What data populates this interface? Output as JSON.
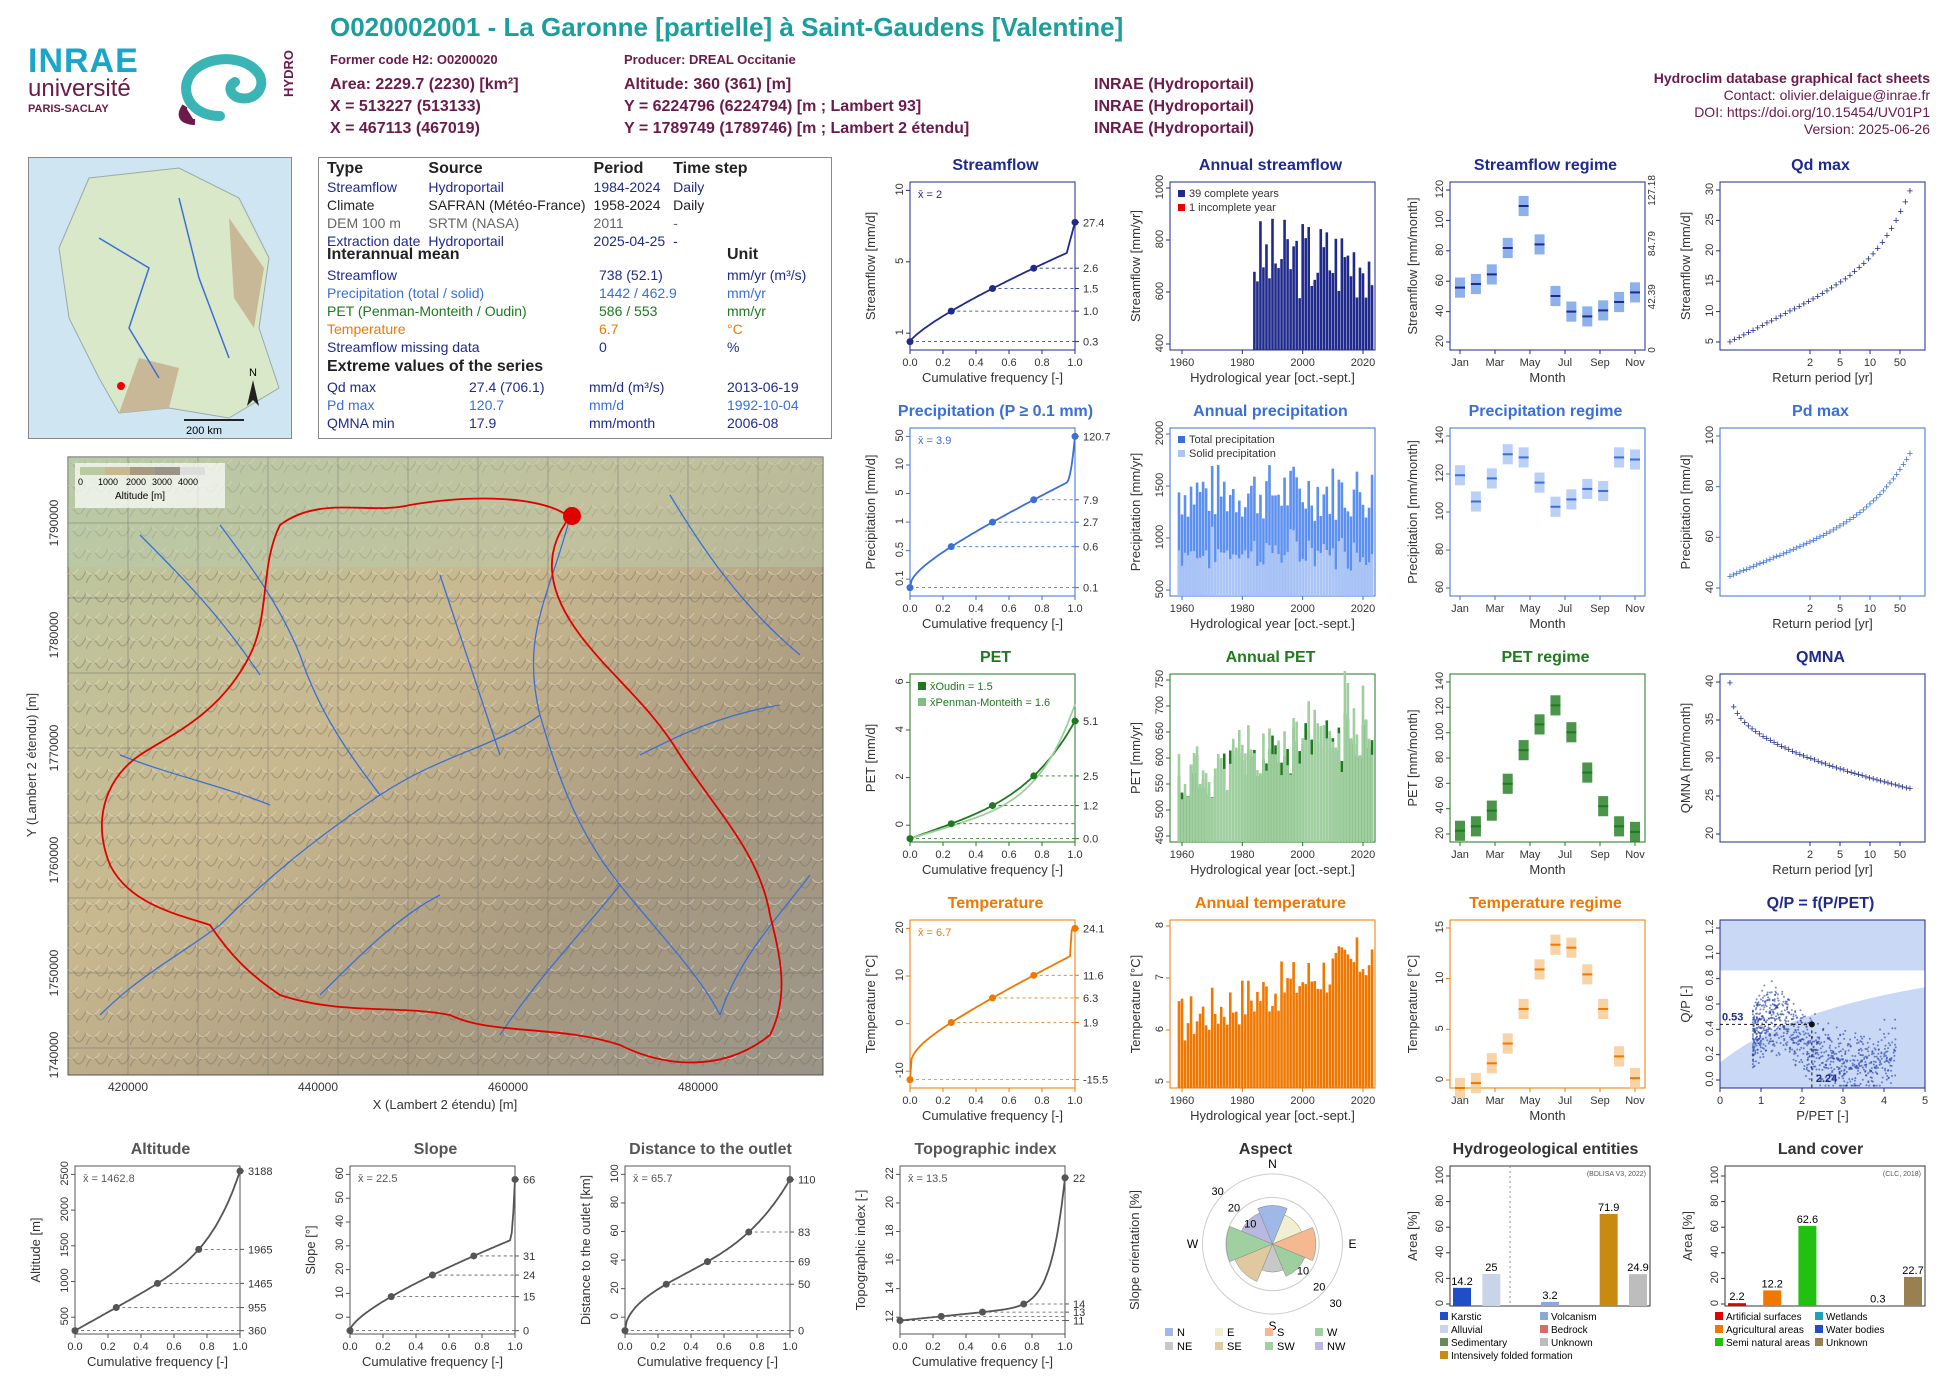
{
  "header": {
    "title": "O020002001 - La Garonne [partielle] à Saint-Gaudens [Valentine]",
    "former_code": "Former code H2: O0200020",
    "producer": "Producer: DREAL Occitanie",
    "area": "Area: 2229.7 (2230) [km²]",
    "altitude": "Altitude: 360 (361) [m]",
    "x1": "X = 513227 (513133)",
    "y1": "Y = 6224796 (6224794) [m ; Lambert 93]",
    "src1": "INRAE (Hydroportail)",
    "x2": "X = 467113 (467019)",
    "y2": "Y = 1789749 (1789746) [m ; Lambert 2 étendu]",
    "src2": "INRAE (Hydroportail)",
    "src3": "INRAE (Hydroportail)",
    "meta_title": "Hydroclim database graphical fact sheets",
    "contact": "Contact: olivier.delaigue@inrae.fr",
    "doi": "DOI: https://doi.org/10.15454/UV01P1",
    "version": "Version: 2025-06-26",
    "logo_inrae": "INRAE",
    "logo_univ": "université",
    "logo_paris": "PARIS-SACLAY",
    "logo_hydro": "HYDRO"
  },
  "colors": {
    "teal": "#1a9e9e",
    "wine": "#6b1a4a",
    "flow": "#1f2a8c",
    "precip": "#3a6fd8",
    "pet": "#1e7a1e",
    "temp": "#f07800",
    "grey": "#555555"
  },
  "info_table": {
    "headers": [
      "Type",
      "Source",
      "Period",
      "Time step"
    ],
    "rows": [
      [
        "Streamflow",
        "Hydroportail",
        "1984-2024",
        "Daily"
      ],
      [
        "Climate",
        "SAFRAN (Météo-France)",
        "1958-2024",
        "Daily"
      ],
      [
        "DEM 100 m",
        "SRTM (NASA)",
        "2011",
        "-"
      ],
      [
        "Extraction date",
        "Hydroportail",
        "2025-04-25",
        "-"
      ]
    ],
    "interannual_title": "Interannual mean",
    "unit_title": "Unit",
    "means": [
      [
        "Streamflow",
        "738 (52.1)",
        "mm/yr (m³/s)"
      ],
      [
        "Precipitation (total / solid)",
        "1442 / 462.9",
        "mm/yr"
      ],
      [
        "PET (Penman-Monteith / Oudin)",
        "586 / 553",
        "mm/yr"
      ],
      [
        "Temperature",
        "6.7",
        "°C"
      ],
      [
        "Streamflow missing data",
        "0",
        "%"
      ]
    ],
    "extreme_title": "Extreme values of the series",
    "extremes": [
      [
        "Qd max",
        "27.4 (706.1)",
        "mm/d (m³/s)",
        "2013-06-19"
      ],
      [
        "Pd max",
        "120.7",
        "mm/d",
        "1992-10-04"
      ],
      [
        "QMNA min",
        "17.9",
        "mm/month",
        "2006-08"
      ]
    ]
  },
  "map": {
    "scale": "200 km",
    "north": "N",
    "legend_title": "Altitude [m]",
    "legend_ticks": [
      "0",
      "1000",
      "2000",
      "3000",
      "4000"
    ],
    "x_label": "X (Lambert 2 étendu) [m]",
    "y_label": "Y (Lambert 2 étendu) [m]",
    "x_ticks": [
      "420000",
      "440000",
      "460000",
      "480000"
    ],
    "y_ticks": [
      "1790000",
      "1780000",
      "1770000",
      "1760000",
      "1750000",
      "1740000"
    ]
  },
  "chart_data": [
    {
      "id": "streamflow",
      "type": "line",
      "title": "Streamflow",
      "xlabel": "Cumulative frequency [-]",
      "ylabel": "Streamflow [mm/d]",
      "mean_label": "x̄ = 2",
      "y_log": true,
      "right_ticks": [
        "27.4",
        "2.6",
        "1.5",
        "1.0",
        "0.3"
      ],
      "x_ticks": [
        "0.0",
        "0.2",
        "0.4",
        "0.6",
        "0.8",
        "1.0"
      ],
      "y_ticks": [
        "1",
        "5",
        "10"
      ]
    },
    {
      "id": "annual_streamflow",
      "type": "bar",
      "title": "Annual streamflow",
      "xlabel": "Hydrological year [oct.-sept.]",
      "ylabel": "Streamflow [mm/yr]",
      "legend": [
        "39 complete years",
        "1 incomplete year"
      ],
      "x_ticks": [
        "1960",
        "1980",
        "2000",
        "2020"
      ],
      "y_ticks": [
        "400",
        "600",
        "800",
        "1000"
      ],
      "ylim": [
        300,
        1200
      ]
    },
    {
      "id": "streamflow_regime",
      "type": "bar",
      "title": "Streamflow regime",
      "xlabel": "Month",
      "ylabel": "Streamflow [mm/month]",
      "categories": [
        "Jan",
        "Feb",
        "Mar",
        "Apr",
        "May",
        "Jun",
        "Jul",
        "Aug",
        "Sep",
        "Oct",
        "Nov",
        "Dec"
      ],
      "values": [
        52,
        55,
        63,
        85,
        120,
        88,
        45,
        32,
        28,
        33,
        40,
        48
      ],
      "x_ticks": [
        "Jan",
        "Mar",
        "May",
        "Jul",
        "Sep",
        "Nov"
      ],
      "y_ticks": [
        "20",
        "40",
        "60",
        "80",
        "100",
        "120"
      ],
      "right_ticks": [
        "0",
        "42.39",
        "84.79",
        "127.18"
      ]
    },
    {
      "id": "qd_max",
      "type": "scatter",
      "title": "Qd max",
      "xlabel": "Return period [yr]",
      "ylabel": "Streamflow [mm/d]",
      "x_ticks": [
        "2",
        "5",
        "10",
        "50"
      ],
      "y_ticks": [
        "5",
        "10",
        "15",
        "20",
        "25",
        "30"
      ]
    },
    {
      "id": "precipitation",
      "type": "line",
      "title": "Precipitation (P ≥ 0.1 mm)",
      "xlabel": "Cumulative frequency [-]",
      "ylabel": "Precipitation [mm/d]",
      "mean_label": "x̄ = 3.9",
      "right_ticks": [
        "120.7",
        "7.9",
        "2.7",
        "0.6",
        "0.1"
      ],
      "x_ticks": [
        "0.0",
        "0.2",
        "0.4",
        "0.6",
        "0.8",
        "1.0"
      ],
      "y_ticks": [
        "0.1",
        "0.5",
        "1",
        "5",
        "10",
        "50"
      ]
    },
    {
      "id": "annual_precipitation",
      "type": "bar",
      "title": "Annual precipitation",
      "xlabel": "Hydrological year [oct.-sept.]",
      "ylabel": "Precipitation [mm/yr]",
      "legend": [
        "Total precipitation",
        "Solid precipitation"
      ],
      "x_ticks": [
        "1960",
        "1980",
        "2000",
        "2020"
      ],
      "y_ticks": [
        "500",
        "1000",
        "1500",
        "2000"
      ]
    },
    {
      "id": "precipitation_regime",
      "type": "bar",
      "title": "Precipitation regime",
      "xlabel": "Month",
      "ylabel": "Precipitation [mm/month]",
      "categories": [
        "Jan",
        "Feb",
        "Mar",
        "Apr",
        "May",
        "Jun",
        "Jul",
        "Aug",
        "Sep",
        "Oct",
        "Nov",
        "Dec"
      ],
      "values": [
        115,
        90,
        112,
        135,
        132,
        108,
        85,
        92,
        102,
        100,
        132,
        130
      ],
      "x_ticks": [
        "Jan",
        "Mar",
        "May",
        "Jul",
        "Sep",
        "Nov"
      ],
      "y_ticks": [
        "60",
        "80",
        "100",
        "120",
        "140"
      ]
    },
    {
      "id": "pd_max",
      "type": "scatter",
      "title": "Pd max",
      "xlabel": "Return period [yr]",
      "ylabel": "Precipitation [mm/d]",
      "x_ticks": [
        "2",
        "5",
        "10",
        "50"
      ],
      "y_ticks": [
        "40",
        "60",
        "80",
        "100"
      ]
    },
    {
      "id": "pet",
      "type": "line",
      "title": "PET",
      "xlabel": "Cumulative frequency [-]",
      "ylabel": "PET [mm/d]",
      "legend": [
        "x̄Oudin = 1.5",
        "x̄Penman-Monteith = 1.6"
      ],
      "right_ticks": [
        "5.1",
        "2.5",
        "1.2",
        "0.0"
      ],
      "x_ticks": [
        "0.0",
        "0.2",
        "0.4",
        "0.6",
        "0.8",
        "1.0"
      ],
      "y_ticks": [
        "0",
        "2",
        "4",
        "6"
      ]
    },
    {
      "id": "annual_pet",
      "type": "bar",
      "title": "Annual PET",
      "xlabel": "Hydrological year [oct.-sept.]",
      "ylabel": "PET [mm/yr]",
      "x_ticks": [
        "1960",
        "1980",
        "2000",
        "2020"
      ],
      "y_ticks": [
        "450",
        "500",
        "550",
        "600",
        "650",
        "700",
        "750"
      ]
    },
    {
      "id": "pet_regime",
      "type": "bar",
      "title": "PET regime",
      "xlabel": "Month",
      "ylabel": "PET [mm/month]",
      "categories": [
        "Jan",
        "Feb",
        "Mar",
        "Apr",
        "May",
        "Jun",
        "Jul",
        "Aug",
        "Sep",
        "Oct",
        "Nov",
        "Dec"
      ],
      "values": [
        10,
        14,
        28,
        52,
        82,
        105,
        122,
        98,
        62,
        32,
        14,
        9
      ],
      "x_ticks": [
        "Jan",
        "Mar",
        "May",
        "Jul",
        "Sep",
        "Nov"
      ],
      "y_ticks": [
        "20",
        "40",
        "60",
        "80",
        "100",
        "120",
        "140"
      ]
    },
    {
      "id": "qmna",
      "type": "scatter",
      "title": "QMNA",
      "xlabel": "Return period [yr]",
      "ylabel": "QMNA [mm/month]",
      "x_ticks": [
        "2",
        "5",
        "10",
        "50"
      ],
      "y_ticks": [
        "20",
        "25",
        "30",
        "35",
        "40"
      ]
    },
    {
      "id": "temperature",
      "type": "line",
      "title": "Temperature",
      "xlabel": "Cumulative frequency [-]",
      "ylabel": "Temperature [°C]",
      "mean_label": "x̄ = 6.7",
      "right_ticks": [
        "24.1",
        "11.6",
        "6.3",
        "1.9",
        "-15.5"
      ],
      "x_ticks": [
        "0.0",
        "0.2",
        "0.4",
        "0.6",
        "0.8",
        "1.0"
      ],
      "y_ticks": [
        "-10",
        "0",
        "10",
        "20"
      ]
    },
    {
      "id": "annual_temperature",
      "type": "bar",
      "title": "Annual temperature",
      "xlabel": "Hydrological year [oct.-sept.]",
      "ylabel": "Temperature [°C]",
      "x_ticks": [
        "1960",
        "1980",
        "2000",
        "2020"
      ],
      "y_ticks": [
        "5",
        "6",
        "7",
        "8"
      ]
    },
    {
      "id": "temperature_regime",
      "type": "bar",
      "title": "Temperature regime",
      "xlabel": "Month",
      "ylabel": "Temperature [°C]",
      "categories": [
        "Jan",
        "Feb",
        "Mar",
        "Apr",
        "May",
        "Jun",
        "Jul",
        "Aug",
        "Sep",
        "Oct",
        "Nov",
        "Dec"
      ],
      "values": [
        0,
        0.5,
        2.5,
        4.5,
        8,
        12,
        14.5,
        14.2,
        11.5,
        8,
        3.2,
        1
      ],
      "x_ticks": [
        "Jan",
        "Mar",
        "May",
        "Jul",
        "Sep",
        "Nov"
      ],
      "y_ticks": [
        "0",
        "5",
        "10",
        "15"
      ]
    },
    {
      "id": "qp_ppet",
      "type": "scatter",
      "title": "Q/P = f(P/PET)",
      "xlabel": "P/PET [-]",
      "ylabel": "Q/P [-]",
      "annotations": [
        "0.53",
        "2.24"
      ],
      "x_ticks": [
        "0",
        "1",
        "2",
        "3",
        "4",
        "5"
      ],
      "y_ticks": [
        "0.0",
        "0.2",
        "0.4",
        "0.6",
        "0.8",
        "1.0",
        "1.2"
      ]
    },
    {
      "id": "altitude",
      "type": "line",
      "title": "Altitude",
      "xlabel": "Cumulative frequency [-]",
      "ylabel": "Altitude [m]",
      "mean_label": "x̄ = 1462.8",
      "right_ticks": [
        "3188",
        "1965",
        "1465",
        "955",
        "360"
      ],
      "x_ticks": [
        "0.0",
        "0.2",
        "0.4",
        "0.6",
        "0.8",
        "1.0"
      ],
      "y_ticks": [
        "500",
        "1000",
        "1500",
        "2000",
        "2500"
      ]
    },
    {
      "id": "slope",
      "type": "line",
      "title": "Slope",
      "xlabel": "Cumulative frequency [-]",
      "ylabel": "Slope [°]",
      "mean_label": "x̄ = 22.5",
      "right_ticks": [
        "66",
        "31",
        "24",
        "15",
        "0"
      ],
      "x_ticks": [
        "0.0",
        "0.2",
        "0.4",
        "0.6",
        "0.8",
        "1.0"
      ],
      "y_ticks": [
        "0",
        "10",
        "20",
        "30",
        "40",
        "50",
        "60"
      ]
    },
    {
      "id": "distance",
      "type": "line",
      "title": "Distance to the outlet",
      "xlabel": "Cumulative frequency [-]",
      "ylabel": "Distance to the outlet [km]",
      "mean_label": "x̄ = 65.7",
      "right_ticks": [
        "110",
        "83",
        "69",
        "50",
        "0"
      ],
      "x_ticks": [
        "0.0",
        "0.2",
        "0.4",
        "0.6",
        "0.8",
        "1.0"
      ],
      "y_ticks": [
        "0",
        "20",
        "40",
        "60",
        "80",
        "100"
      ]
    },
    {
      "id": "topo_index",
      "type": "line",
      "title": "Topographic index",
      "xlabel": "Cumulative frequency [-]",
      "ylabel": "Topographic index [-]",
      "mean_label": "x̄ = 13.5",
      "right_ticks": [
        "22",
        "14",
        "13",
        "11"
      ],
      "x_ticks": [
        "0.0",
        "0.2",
        "0.4",
        "0.6",
        "0.8",
        "1.0"
      ],
      "y_ticks": [
        "12",
        "14",
        "16",
        "18",
        "20",
        "22"
      ]
    },
    {
      "id": "aspect",
      "type": "pie",
      "title": "Aspect",
      "ylabel": "Slope orientation [%]",
      "directions": [
        "N",
        "E",
        "S",
        "W"
      ],
      "rings": [
        "10",
        "20",
        "30"
      ],
      "legend": [
        "N",
        "E",
        "S",
        "W",
        "NE",
        "SE",
        "SW",
        "NW"
      ]
    },
    {
      "id": "hydrogeology",
      "type": "bar",
      "title": "Hydrogeological entities",
      "ylabel": "Area [%]",
      "source": "(BDLISA V3, 2022)",
      "categories": [
        "Karstic",
        "Alluvial",
        "Sedimentary",
        "Volcanism",
        "Bedrock",
        "Intensively folded formation",
        "Unknown"
      ],
      "values": [
        14.2,
        25,
        0,
        3.2,
        0,
        71.9,
        24.9
      ],
      "labels": [
        "14.2",
        "25",
        "3.2",
        "71.9",
        "24.9"
      ],
      "y_ticks": [
        "0",
        "20",
        "40",
        "60",
        "80",
        "100"
      ],
      "legend": [
        "Karstic",
        "Volcanism",
        "Alluvial",
        "Bedrock",
        "Sedimentary",
        "Unknown",
        "Intensively folded formation"
      ]
    },
    {
      "id": "land_cover",
      "type": "bar",
      "title": "Land cover",
      "ylabel": "Area [%]",
      "source": "(CLC, 2018)",
      "categories": [
        "Artificial surfaces",
        "Agricultural areas",
        "Semi natural areas",
        "Wetlands",
        "Water bodies",
        "Unknown"
      ],
      "values": [
        2.2,
        12.2,
        62.6,
        0,
        0.3,
        22.7
      ],
      "labels": [
        "2.2",
        "12.2",
        "62.6",
        "0.3",
        "22.7"
      ],
      "y_ticks": [
        "0",
        "20",
        "40",
        "60",
        "80",
        "100"
      ],
      "legend": [
        "Artificial surfaces",
        "Wetlands",
        "Agricultural areas",
        "Water bodies",
        "Semi natural areas",
        "Unknown"
      ]
    }
  ]
}
